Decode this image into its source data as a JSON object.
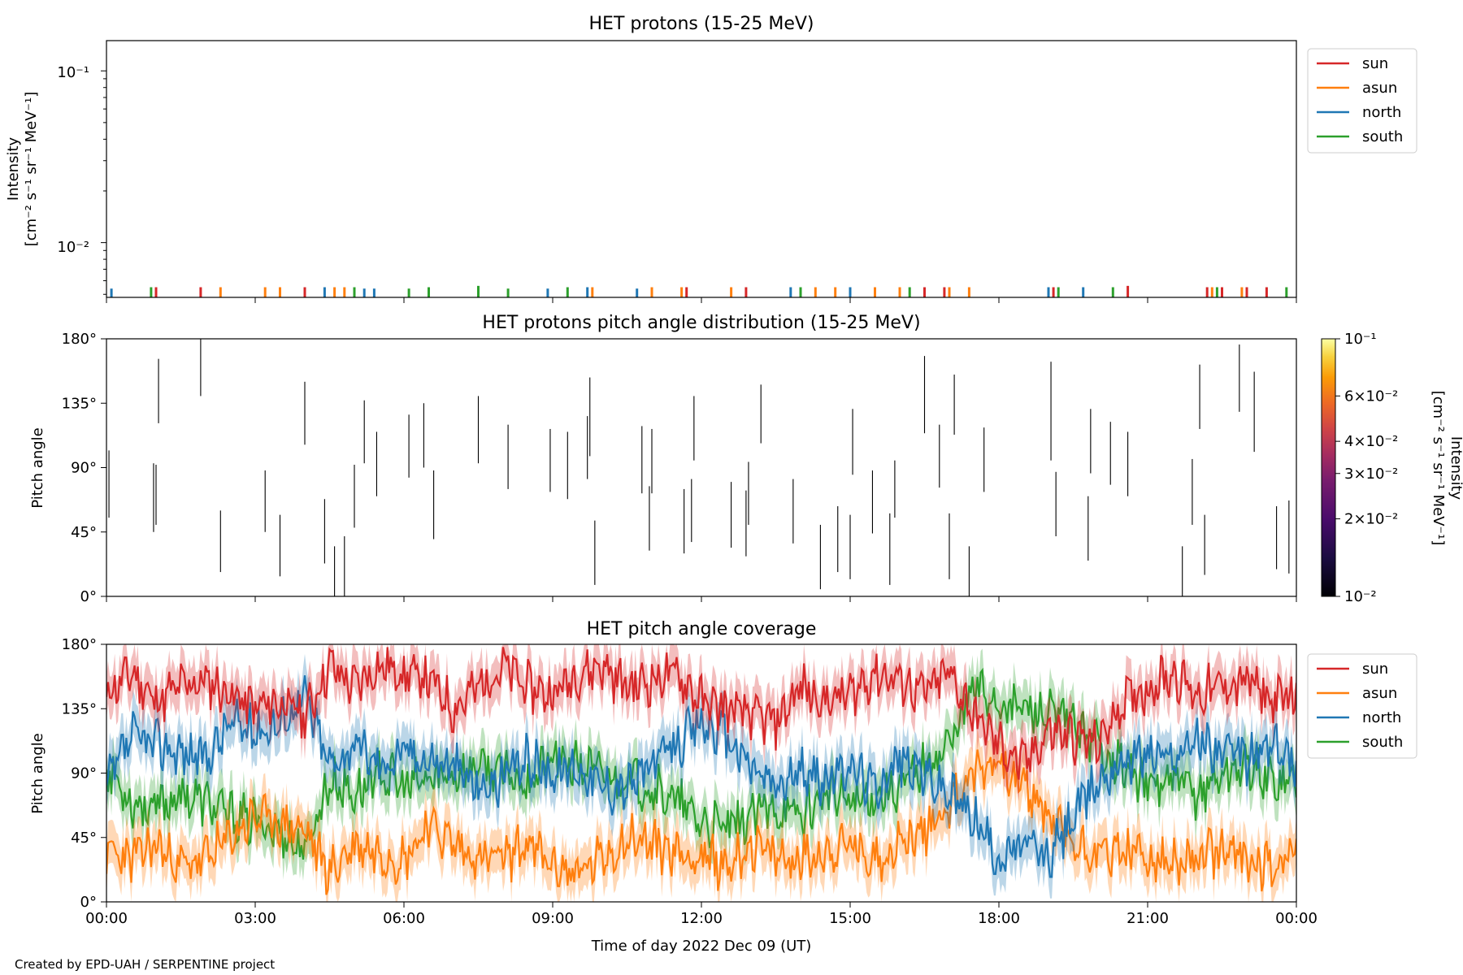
{
  "figure": {
    "credit": "Created by EPD-UAH / SERPENTINE project",
    "xlabel": "Time of day 2022 Dec 09 (UT)",
    "x_ticks": [
      "00:00",
      "03:00",
      "06:00",
      "09:00",
      "12:00",
      "15:00",
      "18:00",
      "21:00",
      "00:00"
    ]
  },
  "panel1": {
    "title": "HET protons (15-25 MeV)",
    "ylabel": "Intensity",
    "yunit": "[cm⁻² s⁻¹ sr⁻¹ MeV⁻¹]",
    "yticks": [
      "10⁻¹",
      "10⁻²"
    ]
  },
  "panel2": {
    "title": "HET protons pitch angle distribution (15-25 MeV)",
    "ylabel": "Pitch angle",
    "yticks": [
      "180°",
      "135°",
      "90°",
      "45°",
      "0°"
    ],
    "colorbar": {
      "label": "Intensity",
      "unit": "[cm⁻² s⁻¹ sr⁻¹ MeV⁻¹]",
      "ticks": [
        "10⁻¹",
        "6×10⁻²",
        "4×10⁻²",
        "3×10⁻²",
        "2×10⁻²",
        "10⁻²"
      ]
    }
  },
  "panel3": {
    "title": "HET pitch angle coverage",
    "ylabel": "Pitch angle",
    "yticks": [
      "180°",
      "135°",
      "90°",
      "45°",
      "0°"
    ]
  },
  "legend": [
    "sun",
    "asun",
    "north",
    "south"
  ],
  "colors": {
    "sun": "#d62728",
    "asun": "#ff7f0e",
    "north": "#1f77b4",
    "south": "#2ca02c",
    "cbar_low": "#000004",
    "cbar_high": "#fcffa4"
  },
  "chart_data": [
    {
      "type": "line",
      "title": "HET protons (15-25 MeV)",
      "xlabel": "Time of day 2022 Dec 09 (UT)",
      "ylabel": "Intensity [cm⁻² s⁻¹ sr⁻¹ MeV⁻¹]",
      "yscale": "log",
      "ylim": [
        0.0048,
        0.15
      ],
      "xlim_hours": [
        0,
        24
      ],
      "series": [
        {
          "name": "sun",
          "hours": [
            1.0,
            1.9,
            4.0,
            11.7,
            12.9,
            16.5,
            16.9,
            19.1,
            20.6,
            22.2,
            22.5,
            23.0,
            23.4
          ],
          "values": [
            0.0055,
            0.0055,
            0.0055,
            0.0055,
            0.0055,
            0.0055,
            0.0055,
            0.0055,
            0.0056,
            0.0055,
            0.0055,
            0.0055,
            0.0055
          ]
        },
        {
          "name": "asun",
          "hours": [
            2.3,
            3.2,
            3.5,
            4.6,
            4.8,
            9.8,
            11.0,
            11.6,
            12.6,
            14.3,
            14.7,
            15.5,
            16.0,
            17.0,
            17.4,
            22.3,
            22.9
          ],
          "values": [
            0.0055,
            0.0055,
            0.0055,
            0.0055,
            0.0055,
            0.0055,
            0.0055,
            0.0055,
            0.0055,
            0.0055,
            0.0055,
            0.0055,
            0.0055,
            0.0055,
            0.0055,
            0.0055,
            0.0055
          ]
        },
        {
          "name": "north",
          "hours": [
            0.1,
            4.4,
            5.2,
            5.4,
            8.9,
            9.7,
            10.7,
            13.8,
            15.0,
            19.0,
            19.7
          ],
          "values": [
            0.0054,
            0.0055,
            0.0054,
            0.0054,
            0.0054,
            0.0055,
            0.0054,
            0.0055,
            0.0055,
            0.0055,
            0.0055
          ]
        },
        {
          "name": "south",
          "hours": [
            0.9,
            5.0,
            6.1,
            6.5,
            7.5,
            8.1,
            9.3,
            14.0,
            16.2,
            19.2,
            20.3,
            22.4,
            23.8
          ],
          "values": [
            0.0055,
            0.0055,
            0.0054,
            0.0055,
            0.0056,
            0.0054,
            0.0055,
            0.0055,
            0.0055,
            0.0055,
            0.0055,
            0.0055,
            0.0055
          ]
        }
      ]
    },
    {
      "type": "heatmap",
      "title": "HET protons pitch angle distribution (15-25 MeV)",
      "xlabel": "Time of day 2022 Dec 09 (UT)",
      "ylabel": "Pitch angle",
      "ylim": [
        0,
        180
      ],
      "xlim_hours": [
        0,
        24
      ],
      "colorbar_range": [
        0.01,
        0.1
      ],
      "colorbar_scale": "log",
      "segments_hour_pa": [
        [
          0.05,
          55,
          102
        ],
        [
          0.95,
          45,
          93
        ],
        [
          1.0,
          50,
          92
        ],
        [
          1.05,
          121,
          166
        ],
        [
          1.9,
          140,
          180
        ],
        [
          2.3,
          17,
          60
        ],
        [
          3.2,
          45,
          88
        ],
        [
          3.5,
          14,
          57
        ],
        [
          4.0,
          106,
          150
        ],
        [
          4.4,
          23,
          68
        ],
        [
          4.6,
          0,
          35
        ],
        [
          4.8,
          0,
          42
        ],
        [
          5.0,
          48,
          92
        ],
        [
          5.2,
          93,
          137
        ],
        [
          5.45,
          70,
          115
        ],
        [
          6.1,
          83,
          127
        ],
        [
          6.4,
          90,
          135
        ],
        [
          6.6,
          40,
          88
        ],
        [
          7.5,
          93,
          140
        ],
        [
          8.1,
          75,
          120
        ],
        [
          8.95,
          73,
          117
        ],
        [
          9.3,
          68,
          115
        ],
        [
          9.7,
          82,
          126
        ],
        [
          9.75,
          98,
          153
        ],
        [
          9.85,
          8,
          53
        ],
        [
          10.8,
          72,
          119
        ],
        [
          10.95,
          32,
          77
        ],
        [
          11.0,
          72,
          117
        ],
        [
          11.65,
          30,
          75
        ],
        [
          11.8,
          38,
          82
        ],
        [
          11.85,
          95,
          140
        ],
        [
          12.6,
          34,
          80
        ],
        [
          12.9,
          28,
          74
        ],
        [
          12.95,
          50,
          94
        ],
        [
          13.2,
          107,
          148
        ],
        [
          13.85,
          37,
          82
        ],
        [
          14.4,
          5,
          50
        ],
        [
          14.75,
          17,
          63
        ],
        [
          15.0,
          12,
          57
        ],
        [
          15.05,
          85,
          131
        ],
        [
          15.45,
          44,
          88
        ],
        [
          15.8,
          8,
          58
        ],
        [
          15.9,
          55,
          95
        ],
        [
          16.5,
          114,
          168
        ],
        [
          16.8,
          76,
          120
        ],
        [
          17.0,
          12,
          58
        ],
        [
          17.1,
          113,
          155
        ],
        [
          17.4,
          0,
          35
        ],
        [
          17.7,
          73,
          118
        ],
        [
          19.05,
          95,
          164
        ],
        [
          19.15,
          42,
          87
        ],
        [
          19.8,
          25,
          70
        ],
        [
          19.85,
          86,
          131
        ],
        [
          20.25,
          78,
          122
        ],
        [
          20.6,
          70,
          115
        ],
        [
          21.7,
          0,
          35
        ],
        [
          21.9,
          50,
          96
        ],
        [
          22.05,
          117,
          162
        ],
        [
          22.15,
          15,
          57
        ],
        [
          22.85,
          129,
          176
        ],
        [
          23.15,
          101,
          157
        ],
        [
          23.6,
          19,
          63
        ],
        [
          23.85,
          16,
          67
        ]
      ]
    },
    {
      "type": "line",
      "title": "HET pitch angle coverage",
      "xlabel": "Time of day 2022 Dec 09 (UT)",
      "ylabel": "Pitch angle",
      "ylim": [
        0,
        180
      ],
      "xlim_hours": [
        0,
        24
      ],
      "band_halfwidth_deg": 15,
      "x_hours": [
        0,
        0.5,
        1,
        1.5,
        2,
        2.5,
        3,
        3.5,
        4,
        4.5,
        5,
        5.5,
        6,
        6.5,
        7,
        7.5,
        8,
        8.5,
        9,
        9.5,
        10,
        10.5,
        11,
        11.5,
        12,
        12.5,
        13,
        13.5,
        14,
        14.5,
        15,
        15.5,
        16,
        16.5,
        17,
        17.5,
        18,
        18.5,
        19,
        19.5,
        20,
        20.5,
        21,
        21.5,
        22,
        22.5,
        23,
        23.5,
        24
      ],
      "series": [
        {
          "name": "sun",
          "values": [
            145,
            160,
            140,
            150,
            155,
            145,
            135,
            140,
            130,
            165,
            150,
            165,
            160,
            155,
            135,
            150,
            165,
            150,
            145,
            160,
            165,
            150,
            155,
            160,
            140,
            135,
            130,
            125,
            150,
            140,
            145,
            160,
            155,
            145,
            160,
            130,
            110,
            95,
            120,
            115,
            110,
            140,
            150,
            160,
            145,
            150,
            155,
            140,
            145
          ]
        },
        {
          "name": "asun",
          "values": [
            35,
            30,
            40,
            25,
            30,
            45,
            60,
            55,
            50,
            20,
            40,
            35,
            30,
            55,
            40,
            30,
            30,
            40,
            25,
            20,
            30,
            45,
            40,
            35,
            30,
            25,
            40,
            30,
            30,
            35,
            40,
            30,
            40,
            50,
            70,
            90,
            100,
            80,
            60,
            40,
            35,
            35,
            30,
            25,
            30,
            35,
            30,
            25,
            40
          ]
        },
        {
          "name": "north",
          "values": [
            80,
            115,
            110,
            105,
            100,
            125,
            120,
            125,
            145,
            95,
            110,
            95,
            105,
            100,
            95,
            80,
            85,
            100,
            90,
            95,
            80,
            80,
            95,
            110,
            125,
            115,
            95,
            80,
            90,
            85,
            95,
            80,
            100,
            90,
            75,
            60,
            30,
            40,
            30,
            60,
            85,
            100,
            105,
            100,
            115,
            105,
            100,
            110,
            95
          ]
        },
        {
          "name": "south",
          "values": [
            95,
            70,
            65,
            75,
            70,
            60,
            55,
            50,
            35,
            85,
            75,
            90,
            80,
            85,
            90,
            95,
            90,
            85,
            100,
            95,
            90,
            85,
            80,
            70,
            55,
            50,
            60,
            65,
            60,
            75,
            70,
            75,
            80,
            95,
            110,
            150,
            140,
            135,
            130,
            125,
            110,
            95,
            80,
            85,
            75,
            90,
            95,
            85,
            85
          ]
        }
      ]
    }
  ]
}
